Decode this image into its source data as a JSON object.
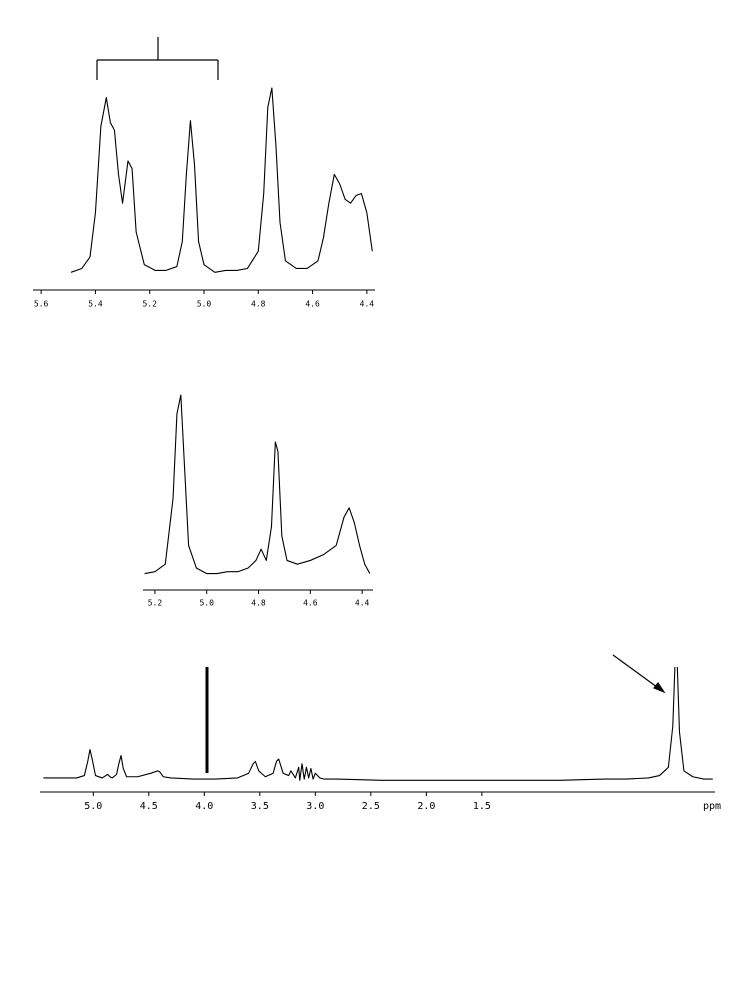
{
  "chart_data": [
    {
      "type": "line",
      "color": "#000000",
      "x": [
        5.49,
        5.45,
        5.42,
        5.4,
        5.38,
        5.36,
        5.345,
        5.33,
        5.315,
        5.3,
        5.28,
        5.265,
        5.25,
        5.22,
        5.18,
        5.14,
        5.1,
        5.08,
        5.065,
        5.05,
        5.035,
        5.02,
        5.0,
        4.96,
        4.92,
        4.88,
        4.84,
        4.8,
        4.78,
        4.765,
        4.75,
        4.735,
        4.72,
        4.7,
        4.66,
        4.62,
        4.58,
        4.56,
        4.54,
        4.52,
        4.5,
        4.48,
        4.46,
        4.44,
        4.42,
        4.4,
        4.38
      ],
      "values": [
        4,
        6,
        12,
        35,
        80,
        95,
        82,
        78,
        55,
        40,
        62,
        58,
        25,
        8,
        5,
        5,
        7,
        20,
        55,
        83,
        60,
        20,
        8,
        4,
        5,
        5,
        6,
        15,
        45,
        90,
        100,
        70,
        30,
        10,
        6,
        6,
        10,
        22,
        40,
        55,
        50,
        42,
        40,
        44,
        45,
        35,
        15
      ],
      "xlim": [
        5.63,
        4.37
      ],
      "ylim": [
        0,
        100
      ],
      "xticks": [
        5.6,
        5.4,
        5.2,
        {
          "value": 5.0,
          "label": "5.0"
        },
        4.8,
        4.6,
        4.4
      ]
    },
    {
      "type": "line",
      "color": "#000000",
      "x": [
        5.24,
        5.2,
        5.16,
        5.13,
        5.115,
        5.1,
        5.085,
        5.07,
        5.04,
        5.0,
        4.96,
        4.92,
        4.88,
        4.84,
        4.81,
        4.79,
        4.77,
        4.75,
        4.735,
        4.725,
        4.71,
        4.69,
        4.65,
        4.6,
        4.55,
        4.5,
        4.47,
        4.45,
        4.43,
        4.41,
        4.39,
        4.37
      ],
      "values": [
        5,
        6,
        10,
        45,
        90,
        100,
        60,
        20,
        8,
        5,
        5,
        6,
        6,
        8,
        12,
        18,
        12,
        30,
        75,
        70,
        25,
        12,
        10,
        12,
        15,
        20,
        35,
        40,
        32,
        20,
        10,
        5
      ],
      "xlim": [
        5.246,
        4.358
      ],
      "ylim": [
        0,
        100
      ],
      "xticks": [
        5.2,
        {
          "value": 5.0,
          "label": "5.0"
        },
        4.8,
        4.6,
        4.4
      ]
    },
    {
      "type": "line",
      "color": "#000000",
      "xlabel": "ppm",
      "x": [
        5.45,
        5.3,
        5.15,
        5.08,
        5.05,
        5.03,
        5.01,
        4.98,
        4.92,
        4.87,
        4.85,
        4.83,
        4.79,
        4.77,
        4.75,
        4.73,
        4.7,
        4.6,
        4.48,
        4.42,
        4.4,
        4.37,
        4.3,
        4.1,
        3.9,
        3.7,
        3.6,
        3.56,
        3.54,
        3.51,
        3.45,
        3.38,
        3.35,
        3.33,
        3.29,
        3.24,
        3.22,
        3.18,
        3.15,
        3.14,
        3.12,
        3.1,
        3.08,
        3.06,
        3.04,
        3.02,
        3.0,
        2.96,
        2.92,
        2.8,
        2.4,
        2.0,
        1.6,
        1.2,
        0.8,
        0.4,
        0.2,
        0.0,
        -0.1,
        -0.18,
        -0.22,
        -0.25,
        -0.28,
        -0.32,
        -0.4,
        -0.5,
        -0.58
      ],
      "values": [
        6,
        6,
        6,
        8,
        20,
        30,
        22,
        8,
        6,
        9,
        7,
        6,
        9,
        18,
        25,
        14,
        7,
        7,
        10,
        12,
        11,
        7,
        6,
        5,
        5,
        6,
        10,
        18,
        20,
        12,
        7,
        10,
        20,
        22,
        10,
        8,
        12,
        6,
        15,
        4,
        18,
        5,
        15,
        6,
        14,
        5,
        10,
        6,
        5,
        5,
        4,
        4,
        4,
        4,
        4,
        5,
        5,
        6,
        8,
        15,
        50,
        130,
        45,
        12,
        7,
        5,
        5
      ],
      "xlim": [
        5.48,
        -0.6
      ],
      "ylim": [
        0,
        100
      ],
      "xticks": [
        {
          "value": 5.0,
          "label": "5.0"
        },
        4.5,
        {
          "value": 4.0,
          "label": "4.0"
        },
        3.5,
        {
          "value": 3.0,
          "label": "3.0"
        },
        2.5,
        {
          "value": 2.0,
          "label": "2.0"
        },
        1.5
      ]
    }
  ]
}
